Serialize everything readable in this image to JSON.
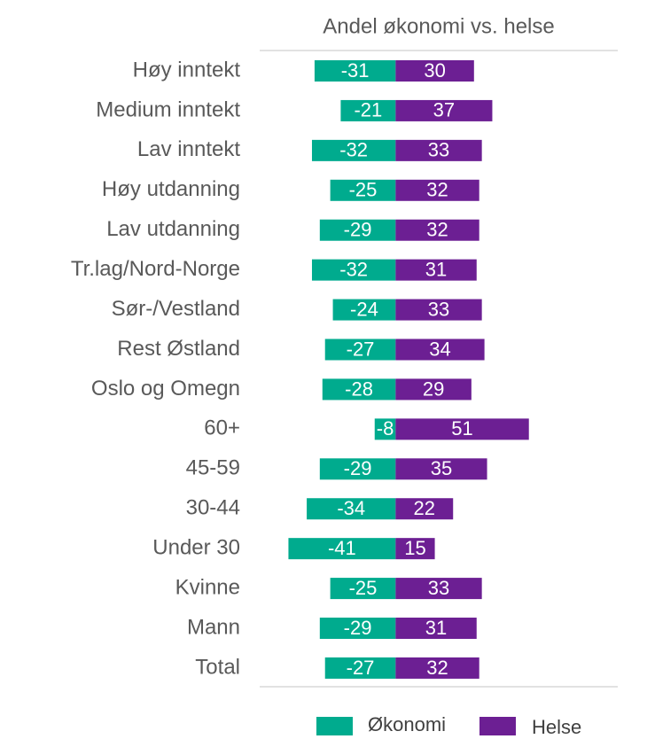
{
  "chart_data": {
    "type": "diverging_bar",
    "title": "Andel økonomi vs. helse",
    "categories": [
      "Høy inntekt",
      "Medium inntekt",
      "Lav inntekt",
      "Høy utdanning",
      "Lav utdanning",
      "Tr.lag/Nord-Norge",
      "Sør-/Vestland",
      "Rest Østland",
      "Oslo og Omegn",
      "60+",
      "45-59",
      "30-44",
      "Under 30",
      "Kvinne",
      "Mann",
      "Total"
    ],
    "series": [
      {
        "name": "Økonomi",
        "color": "#00ab8e",
        "values": [
          -31,
          -21,
          -32,
          -25,
          -29,
          -32,
          -24,
          -27,
          -28,
          -8,
          -29,
          -34,
          -41,
          -25,
          -29,
          -27
        ]
      },
      {
        "name": "Helse",
        "color": "#6c1f93",
        "values": [
          30,
          37,
          33,
          32,
          32,
          31,
          33,
          34,
          29,
          51,
          35,
          22,
          15,
          33,
          31,
          32
        ]
      }
    ],
    "xlim": [
      -52,
      85
    ]
  }
}
